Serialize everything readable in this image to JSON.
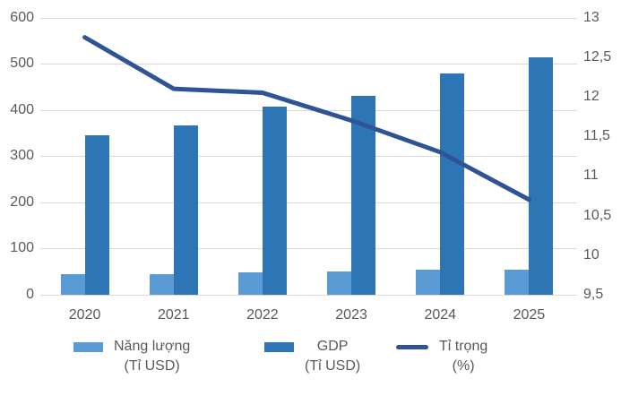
{
  "chart_data": {
    "type": "combo-bar-line",
    "categories": [
      "2020",
      "2021",
      "2022",
      "2023",
      "2024",
      "2025"
    ],
    "series": [
      {
        "name": "Năng lượng (Tỉ USD)",
        "kind": "bar",
        "axis": "left",
        "color": "#5B9BD5",
        "values": [
          44,
          44,
          49,
          50,
          54,
          55
        ]
      },
      {
        "name": "GDP (Tỉ USD)",
        "kind": "bar",
        "axis": "left",
        "color": "#2E75B6",
        "values": [
          345,
          367,
          408,
          430,
          478,
          513
        ]
      },
      {
        "name": "Tỉ trọng (%)",
        "kind": "line",
        "axis": "right",
        "color": "#2F5496",
        "values": [
          12.75,
          12.1,
          12.05,
          11.7,
          11.3,
          10.7
        ]
      }
    ],
    "left_axis": {
      "min": 0,
      "max": 600,
      "step": 100,
      "ticks": [
        "0",
        "100",
        "200",
        "300",
        "400",
        "500",
        "600"
      ]
    },
    "right_axis": {
      "min": 9.5,
      "max": 13,
      "step": 0.5,
      "ticks": [
        "9,5",
        "10",
        "10,5",
        "11",
        "11,5",
        "12",
        "12,5",
        "13"
      ]
    },
    "grid": true,
    "legend_position": "bottom",
    "legend": [
      {
        "line1": "Năng lượng",
        "line2": "(Tỉ USD)",
        "marker": "square",
        "color": "#5B9BD5"
      },
      {
        "line1": "GDP",
        "line2": "(Tỉ USD)",
        "marker": "square",
        "color": "#2E75B6"
      },
      {
        "line1": "Tỉ trọng",
        "line2": "(%)",
        "marker": "line",
        "color": "#2F5496"
      }
    ],
    "colors": {
      "grid": "#d9d9d9",
      "axis_text": "#595959",
      "background": "#ffffff"
    }
  }
}
